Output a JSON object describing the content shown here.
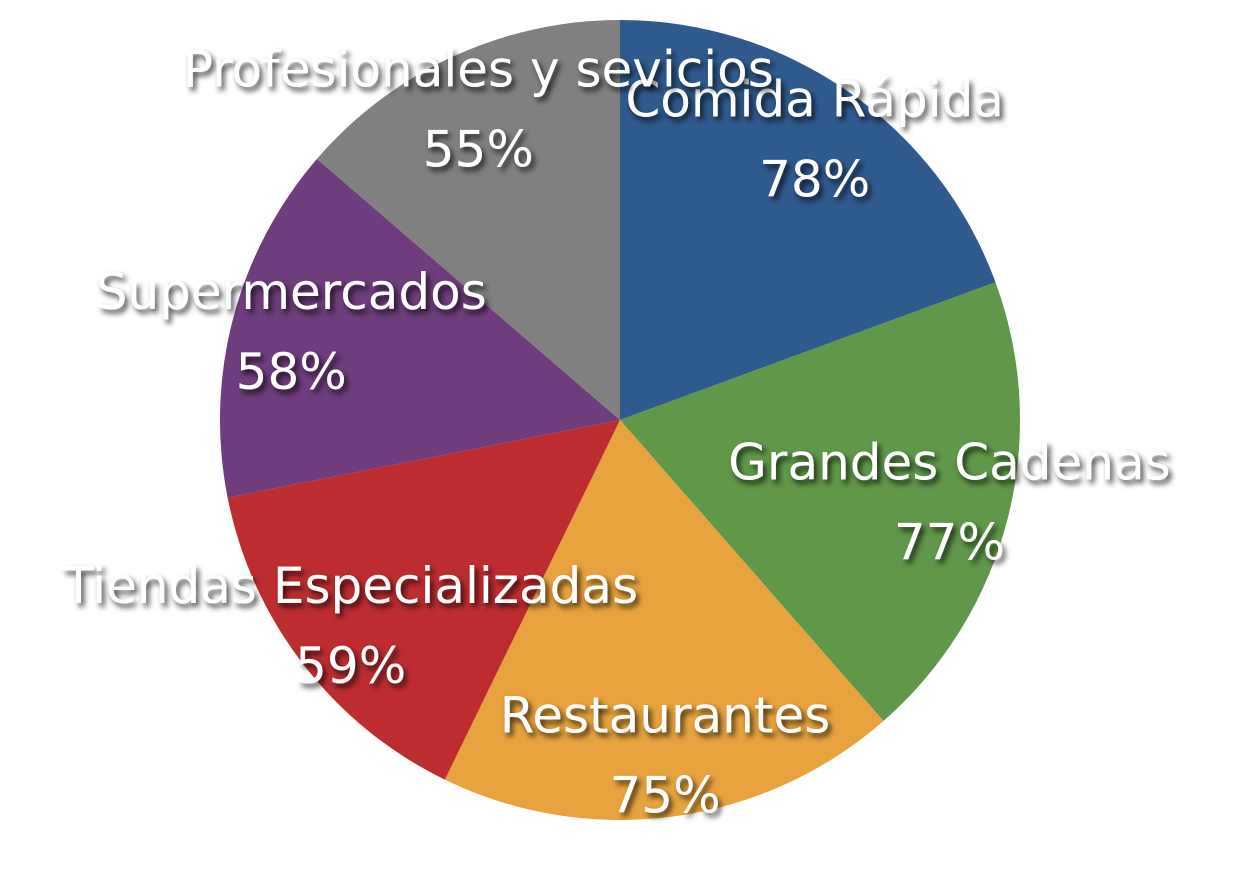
{
  "chart_data": {
    "type": "pie",
    "categories": [
      "Comida Rápida",
      "Grandes Cadenas",
      "Restaurantes",
      "Tiendas Especializadas",
      "Supermercados",
      "Profesionales y sevicios"
    ],
    "values": [
      78,
      77,
      75,
      59,
      58,
      55
    ],
    "value_labels": [
      "78%",
      "77%",
      "75%",
      "59%",
      "58%",
      "55%"
    ],
    "colors": [
      "#2e5a8e",
      "#5e9848",
      "#e8a23e",
      "#bd2c2f",
      "#6f3c7d",
      "#808080"
    ]
  }
}
